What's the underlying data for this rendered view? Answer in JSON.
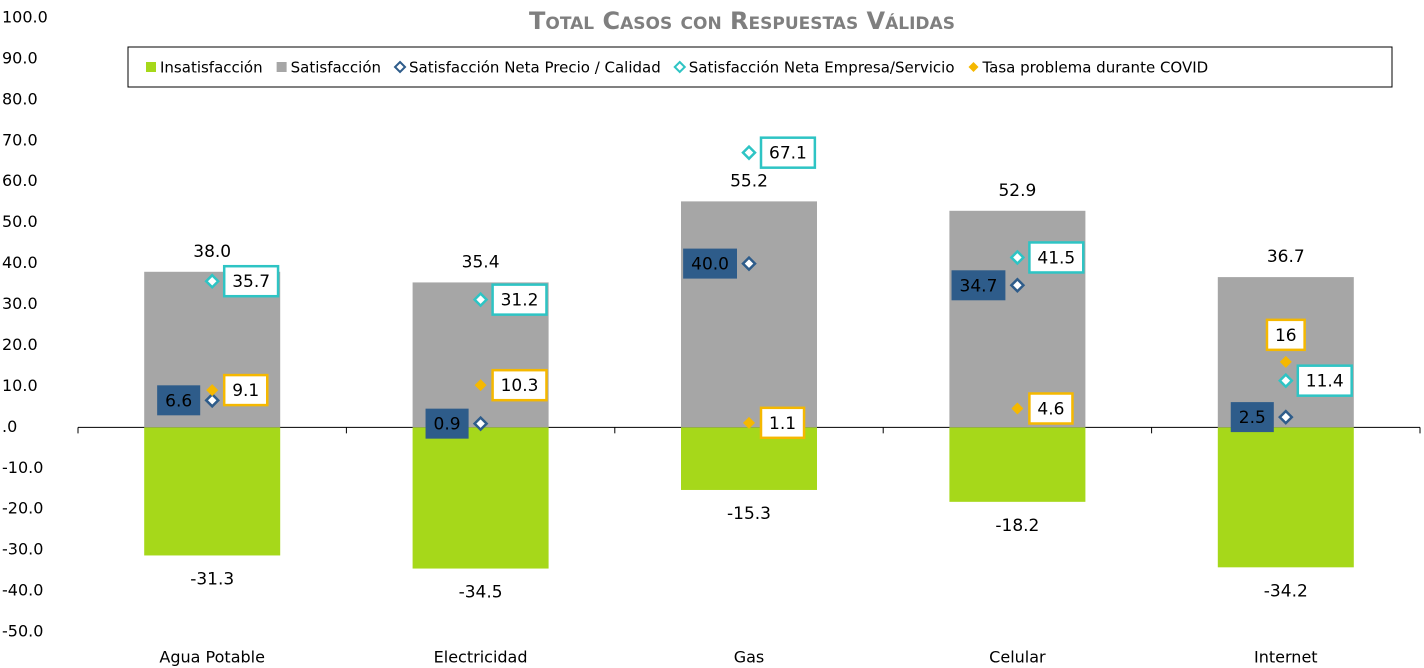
{
  "chart_data": {
    "type": "bar",
    "title": "Total Casos con Respuestas Válidas",
    "categories": [
      "Agua Potable",
      "Electricidad",
      "Gas",
      "Celular",
      "Internet"
    ],
    "series": [
      {
        "name": "Insatisfacción",
        "type": "bar",
        "color": "#a6d81a",
        "values": [
          -31.3,
          -34.5,
          -15.3,
          -18.2,
          -34.2
        ],
        "value_labels": [
          "-31.3",
          "-34.5",
          "-15.3",
          "-18.2",
          "-34.2"
        ]
      },
      {
        "name": "Satisfacción",
        "type": "bar",
        "color": "#a6a6a6",
        "values": [
          38.0,
          35.4,
          55.2,
          52.9,
          36.7
        ],
        "value_labels": [
          "38.0",
          "35.4",
          "55.2",
          "52.9",
          "36.7"
        ]
      },
      {
        "name": "Satisfacción Neta Precio / Calidad",
        "type": "scatter",
        "color": "#2e5c8a",
        "values": [
          6.6,
          0.9,
          40.0,
          34.7,
          2.5
        ],
        "value_labels": [
          "6.6",
          "0.9",
          "40.0",
          "34.7",
          "2.5"
        ]
      },
      {
        "name": "Satisfacción Neta Empresa/Servicio",
        "type": "scatter",
        "color": "#2ec4c4",
        "values": [
          35.7,
          31.2,
          67.1,
          41.5,
          11.4
        ],
        "value_labels": [
          "35.7",
          "31.2",
          "67.1",
          "41.5",
          "11.4"
        ]
      },
      {
        "name": "Tasa problema durante COVID",
        "type": "scatter",
        "color": "#f5b800",
        "values": [
          9.1,
          10.3,
          1.1,
          4.6,
          16
        ],
        "value_labels": [
          "9.1",
          "10.3",
          "1.1",
          "4.6",
          "16"
        ]
      }
    ],
    "ylim": [
      -50,
      100
    ],
    "yticks": [
      {
        "value": 100,
        "label": "100.0"
      },
      {
        "value": 90,
        "label": "90.0"
      },
      {
        "value": 80,
        "label": "80.0"
      },
      {
        "value": 70,
        "label": "70.0"
      },
      {
        "value": 60,
        "label": "60.0"
      },
      {
        "value": 50,
        "label": "50.0"
      },
      {
        "value": 40,
        "label": "40.0"
      },
      {
        "value": 30,
        "label": "30.0"
      },
      {
        "value": 20,
        "label": "20.0"
      },
      {
        "value": 10,
        "label": "10.0"
      },
      {
        "value": 0,
        "label": ".0"
      },
      {
        "value": -10,
        "label": "-10.0"
      },
      {
        "value": -20,
        "label": "-20.0"
      },
      {
        "value": -30,
        "label": "-30.0"
      },
      {
        "value": -40,
        "label": "-40.0"
      },
      {
        "value": -50,
        "label": "-50.0"
      }
    ],
    "grid": false,
    "legend": "top"
  }
}
